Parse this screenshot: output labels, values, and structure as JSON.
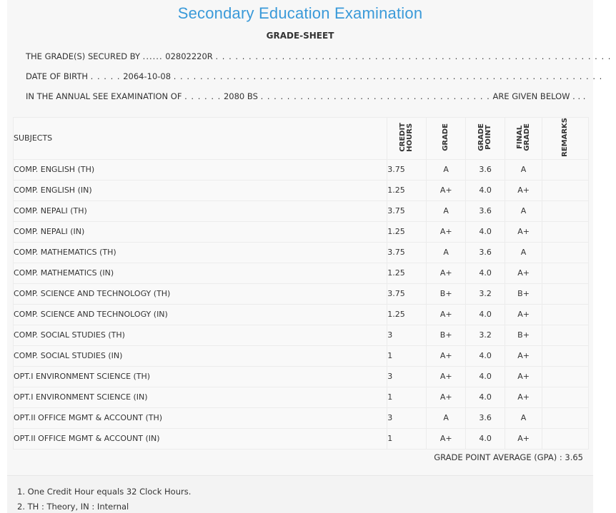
{
  "header": {
    "title": "Secondary Education Examination",
    "subtitle": "GRADE-SHEET"
  },
  "student": {
    "secured_by_label": "THE GRADE(S) SECURED BY",
    "symbol_no": "02802220R",
    "dob_label": "DATE OF BIRTH",
    "dob": "2064-10-08",
    "exam_label": "IN THE ANNUAL SEE EXAMINATION OF",
    "exam_year": "2080 BS",
    "given_below": "ARE GIVEN BELOW . . ."
  },
  "table": {
    "headers": {
      "subjects": "SUBJECTS",
      "credit_hours": "CREDIT\nHOURS",
      "grade": "GRADE",
      "grade_point": "GRADE\nPOINT",
      "final_grade": "FINAL\nGRADE",
      "remarks": "REMARKS"
    },
    "rows": [
      {
        "subject": "COMP. ENGLISH (TH)",
        "credit": "3.75",
        "grade": "A",
        "point": "3.6",
        "final": "A",
        "remarks": ""
      },
      {
        "subject": "COMP. ENGLISH (IN)",
        "credit": "1.25",
        "grade": "A+",
        "point": "4.0",
        "final": "A+",
        "remarks": ""
      },
      {
        "subject": "COMP. NEPALI (TH)",
        "credit": "3.75",
        "grade": "A",
        "point": "3.6",
        "final": "A",
        "remarks": ""
      },
      {
        "subject": "COMP. NEPALI (IN)",
        "credit": "1.25",
        "grade": "A+",
        "point": "4.0",
        "final": "A+",
        "remarks": ""
      },
      {
        "subject": "COMP. MATHEMATICS (TH)",
        "credit": "3.75",
        "grade": "A",
        "point": "3.6",
        "final": "A",
        "remarks": ""
      },
      {
        "subject": "COMP. MATHEMATICS (IN)",
        "credit": "1.25",
        "grade": "A+",
        "point": "4.0",
        "final": "A+",
        "remarks": ""
      },
      {
        "subject": "COMP. SCIENCE AND TECHNOLOGY (TH)",
        "credit": "3.75",
        "grade": "B+",
        "point": "3.2",
        "final": "B+",
        "remarks": ""
      },
      {
        "subject": "COMP. SCIENCE AND TECHNOLOGY (IN)",
        "credit": "1.25",
        "grade": "A+",
        "point": "4.0",
        "final": "A+",
        "remarks": ""
      },
      {
        "subject": "COMP. SOCIAL STUDIES (TH)",
        "credit": "3",
        "grade": "B+",
        "point": "3.2",
        "final": "B+",
        "remarks": ""
      },
      {
        "subject": "COMP. SOCIAL STUDIES (IN)",
        "credit": "1",
        "grade": "A+",
        "point": "4.0",
        "final": "A+",
        "remarks": ""
      },
      {
        "subject": "OPT.I ENVIRONMENT SCIENCE (TH)",
        "credit": "3",
        "grade": "A+",
        "point": "4.0",
        "final": "A+",
        "remarks": ""
      },
      {
        "subject": "OPT.I ENVIRONMENT SCIENCE (IN)",
        "credit": "1",
        "grade": "A+",
        "point": "4.0",
        "final": "A+",
        "remarks": ""
      },
      {
        "subject": "OPT.II OFFICE MGMT & ACCOUNT (TH)",
        "credit": "3",
        "grade": "A",
        "point": "3.6",
        "final": "A",
        "remarks": ""
      },
      {
        "subject": "OPT.II OFFICE MGMT & ACCOUNT (IN)",
        "credit": "1",
        "grade": "A+",
        "point": "4.0",
        "final": "A+",
        "remarks": ""
      }
    ]
  },
  "gpa": {
    "text": "GRADE POINT AVERAGE (GPA) : 3.65"
  },
  "notes": [
    "1. One Credit Hour equals 32 Clock Hours.",
    "2. TH : Theory, IN : Internal"
  ]
}
